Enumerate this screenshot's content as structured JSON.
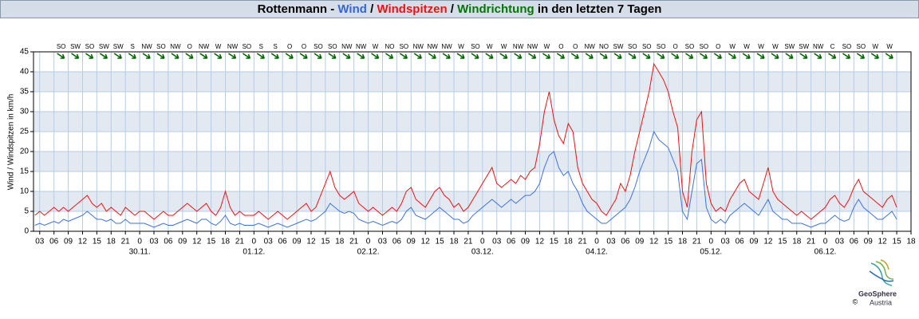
{
  "chart_data": {
    "type": "line",
    "title_parts": [
      {
        "text": "Rottenmann - ",
        "color": "#000000"
      },
      {
        "text": "Wind",
        "color": "#3366dd"
      },
      {
        "text": " / ",
        "color": "#000000"
      },
      {
        "text": "Windspitzen",
        "color": "#ee1111"
      },
      {
        "text": " / ",
        "color": "#000000"
      },
      {
        "text": "Windrichtung",
        "color": "#007700"
      },
      {
        "text": " in den letzten 7 Tagen",
        "color": "#000000"
      }
    ],
    "y_label": "Wind / Windspitzen in km/h",
    "ylim": [
      0,
      45
    ],
    "yticks": [
      0,
      5,
      10,
      15,
      20,
      25,
      30,
      35,
      40,
      45
    ],
    "xlim": [
      -22.3,
      162
    ],
    "xticks": [
      {
        "value": -21,
        "label": "03"
      },
      {
        "value": -18,
        "label": "06"
      },
      {
        "value": -15,
        "label": "09"
      },
      {
        "value": -12,
        "label": "12"
      },
      {
        "value": -9,
        "label": "15"
      },
      {
        "value": -6,
        "label": "18"
      },
      {
        "value": -3,
        "label": "21"
      },
      {
        "value": 0,
        "label": "0"
      },
      {
        "value": 3,
        "label": "03"
      },
      {
        "value": 6,
        "label": "06"
      },
      {
        "value": 9,
        "label": "09"
      },
      {
        "value": 12,
        "label": "12"
      },
      {
        "value": 15,
        "label": "15"
      },
      {
        "value": 18,
        "label": "18"
      },
      {
        "value": 21,
        "label": "21"
      },
      {
        "value": 24,
        "label": "0"
      },
      {
        "value": 27,
        "label": "03"
      },
      {
        "value": 30,
        "label": "06"
      },
      {
        "value": 33,
        "label": "09"
      },
      {
        "value": 36,
        "label": "12"
      },
      {
        "value": 39,
        "label": "15"
      },
      {
        "value": 42,
        "label": "18"
      },
      {
        "value": 45,
        "label": "21"
      },
      {
        "value": 48,
        "label": "0"
      },
      {
        "value": 51,
        "label": "03"
      },
      {
        "value": 54,
        "label": "06"
      },
      {
        "value": 57,
        "label": "09"
      },
      {
        "value": 60,
        "label": "12"
      },
      {
        "value": 63,
        "label": "15"
      },
      {
        "value": 66,
        "label": "18"
      },
      {
        "value": 69,
        "label": "21"
      },
      {
        "value": 72,
        "label": "0"
      },
      {
        "value": 75,
        "label": "03"
      },
      {
        "value": 78,
        "label": "06"
      },
      {
        "value": 81,
        "label": "09"
      },
      {
        "value": 84,
        "label": "12"
      },
      {
        "value": 87,
        "label": "15"
      },
      {
        "value": 90,
        "label": "18"
      },
      {
        "value": 93,
        "label": "21"
      },
      {
        "value": 96,
        "label": "0"
      },
      {
        "value": 99,
        "label": "03"
      },
      {
        "value": 102,
        "label": "06"
      },
      {
        "value": 105,
        "label": "09"
      },
      {
        "value": 108,
        "label": "12"
      },
      {
        "value": 111,
        "label": "15"
      },
      {
        "value": 114,
        "label": "18"
      },
      {
        "value": 117,
        "label": "21"
      },
      {
        "value": 120,
        "label": "0"
      },
      {
        "value": 123,
        "label": "03"
      },
      {
        "value": 126,
        "label": "06"
      },
      {
        "value": 129,
        "label": "09"
      },
      {
        "value": 132,
        "label": "12"
      },
      {
        "value": 135,
        "label": "15"
      },
      {
        "value": 138,
        "label": "18"
      },
      {
        "value": 141,
        "label": "21"
      },
      {
        "value": 144,
        "label": "0"
      },
      {
        "value": 147,
        "label": "03"
      },
      {
        "value": 150,
        "label": "06"
      },
      {
        "value": 153,
        "label": "09"
      },
      {
        "value": 156,
        "label": "12"
      },
      {
        "value": 159,
        "label": "15"
      },
      {
        "value": 162,
        "label": "18"
      }
    ],
    "date_labels": [
      {
        "value": 0,
        "label": "30.11."
      },
      {
        "value": 24,
        "label": "01.12."
      },
      {
        "value": 48,
        "label": "02.12."
      },
      {
        "value": 72,
        "label": "03.12."
      },
      {
        "value": 96,
        "label": "04.12."
      },
      {
        "value": 120,
        "label": "05.12."
      },
      {
        "value": 144,
        "label": "06.12."
      }
    ],
    "grid": true,
    "x": [
      -22,
      -21,
      -20,
      -19,
      -18,
      -17,
      -16,
      -15,
      -14,
      -13,
      -12,
      -11,
      -10,
      -9,
      -8,
      -7,
      -6,
      -5,
      -4,
      -3,
      -2,
      -1,
      0,
      1,
      2,
      3,
      4,
      5,
      6,
      7,
      8,
      9,
      10,
      11,
      12,
      13,
      14,
      15,
      16,
      17,
      18,
      19,
      20,
      21,
      22,
      23,
      24,
      25,
      26,
      27,
      28,
      29,
      30,
      31,
      32,
      33,
      34,
      35,
      36,
      37,
      38,
      39,
      40,
      41,
      42,
      43,
      44,
      45,
      46,
      47,
      48,
      49,
      50,
      51,
      52,
      53,
      54,
      55,
      56,
      57,
      58,
      59,
      60,
      61,
      62,
      63,
      64,
      65,
      66,
      67,
      68,
      69,
      70,
      71,
      72,
      73,
      74,
      75,
      76,
      77,
      78,
      79,
      80,
      81,
      82,
      83,
      84,
      85,
      86,
      87,
      88,
      89,
      90,
      91,
      92,
      93,
      94,
      95,
      96,
      97,
      98,
      99,
      100,
      101,
      102,
      103,
      104,
      105,
      106,
      107,
      108,
      109,
      110,
      111,
      112,
      113,
      114,
      115,
      116,
      117,
      118,
      119,
      120,
      121,
      122,
      123,
      124,
      125,
      126,
      127,
      128,
      129,
      130,
      131,
      132,
      133,
      134,
      135,
      136,
      137,
      138,
      139,
      140,
      141,
      142,
      143,
      144,
      145,
      146,
      147,
      148,
      149,
      150,
      151,
      152,
      153,
      154,
      155,
      156,
      157,
      158,
      159
    ],
    "series": [
      {
        "color": "#3f72dd",
        "values": [
          1.5,
          2,
          1.5,
          2,
          2.5,
          2,
          3,
          2.5,
          3,
          3.5,
          4,
          5,
          4,
          3,
          3,
          2.5,
          3,
          2,
          2,
          3,
          2,
          2,
          2,
          2,
          1.5,
          1,
          1.5,
          2,
          1.5,
          1.5,
          2,
          2.5,
          3,
          2.5,
          2,
          3,
          3,
          2,
          1.5,
          2.5,
          4,
          2,
          1.5,
          2,
          1.5,
          1.5,
          1.5,
          2,
          1.5,
          1,
          1.5,
          2,
          1.5,
          1,
          1.5,
          2,
          2.5,
          3,
          2.5,
          3,
          4,
          5,
          7,
          6,
          5,
          4.5,
          5,
          4.5,
          3,
          2.5,
          2,
          2.5,
          2,
          1.5,
          2,
          2.5,
          2,
          3,
          5,
          6,
          4,
          3.5,
          3,
          4,
          5,
          6,
          5,
          4,
          3,
          3,
          2,
          2.5,
          4,
          5,
          6,
          7,
          8,
          7,
          6,
          7,
          8,
          7,
          8,
          9,
          9,
          10,
          12,
          16,
          19,
          20,
          16,
          14,
          15,
          12,
          10,
          7,
          5,
          4,
          3,
          2,
          2,
          3,
          4,
          5,
          6,
          8,
          11,
          15,
          18,
          21,
          25,
          23,
          22,
          21,
          18,
          15,
          5,
          3,
          10,
          17,
          18,
          6,
          3,
          2,
          3,
          2,
          4,
          5,
          6,
          7,
          6,
          5,
          4,
          6,
          8,
          5,
          4,
          3,
          3,
          2,
          2,
          2,
          1.5,
          1,
          1.5,
          2,
          2,
          3,
          4,
          3,
          2.5,
          3,
          6,
          8,
          6,
          5,
          4,
          3,
          3,
          4,
          5,
          3
        ]
      },
      {
        "color": "#ee1111",
        "values": [
          4,
          5,
          4,
          5,
          6,
          5,
          6,
          5,
          6,
          7,
          8,
          9,
          7,
          6,
          7,
          5,
          6,
          5,
          4,
          6,
          5,
          4,
          5,
          5,
          4,
          3,
          4,
          5,
          4,
          4,
          5,
          6,
          7,
          6,
          5,
          6,
          7,
          5,
          4,
          6,
          10,
          6,
          4,
          5,
          4,
          4,
          4,
          5,
          4,
          3,
          4,
          5,
          4,
          3,
          4,
          5,
          6,
          7,
          5,
          6,
          9,
          12,
          15,
          11,
          9,
          8,
          9,
          10,
          7,
          6,
          5,
          6,
          5,
          4,
          5,
          6,
          5,
          7,
          10,
          11,
          8,
          7,
          6,
          8,
          10,
          11,
          9,
          8,
          6,
          7,
          5,
          6,
          8,
          10,
          12,
          14,
          16,
          12,
          11,
          12,
          13,
          12,
          14,
          13,
          15,
          16,
          22,
          30,
          35,
          28,
          24,
          22,
          27,
          25,
          16,
          12,
          10,
          8,
          7,
          5,
          4,
          6,
          8,
          12,
          10,
          14,
          20,
          25,
          30,
          35,
          42,
          40,
          38,
          35,
          30,
          26,
          10,
          6,
          20,
          28,
          30,
          12,
          7,
          5,
          6,
          5,
          8,
          10,
          12,
          13,
          10,
          9,
          8,
          12,
          16,
          10,
          8,
          7,
          6,
          5,
          4,
          5,
          4,
          3,
          4,
          5,
          6,
          8,
          9,
          7,
          6,
          8,
          11,
          13,
          10,
          9,
          8,
          7,
          6,
          8,
          9,
          6
        ]
      }
    ],
    "directions": {
      "color": "#006600",
      "x": [
        -16.5,
        -13.5,
        -10.5,
        -7.5,
        -4.5,
        -1.5,
        1.5,
        4.5,
        7.5,
        10.5,
        13.5,
        16.5,
        19.5,
        22.5,
        25.5,
        28.5,
        31.5,
        34.5,
        37.5,
        40.5,
        43.5,
        46.5,
        49.5,
        52.5,
        55.5,
        58.5,
        61.5,
        64.5,
        67.5,
        70.5,
        73.5,
        76.5,
        79.5,
        82.5,
        85.5,
        88.5,
        91.5,
        94.5,
        97.5,
        100.5,
        103.5,
        106.5,
        109.5,
        112.5,
        115.5,
        118.5,
        121.5,
        124.5,
        127.5,
        130.5,
        133.5,
        136.5,
        139.5,
        142.5,
        145.5,
        148.5,
        151.5,
        154.5,
        157.5
      ],
      "labels": [
        "SO",
        "SW",
        "SO",
        "SW",
        "SW",
        "S",
        "NW",
        "SO",
        "NW",
        "O",
        "NW",
        "W",
        "NW",
        "SO",
        "S",
        "S",
        "O",
        "O",
        "SO",
        "SO",
        "NW",
        "NW",
        "W",
        "NO",
        "SO",
        "NW",
        "NW",
        "NW",
        "W",
        "SO",
        "W",
        "W",
        "NW",
        "NW",
        "W",
        "O",
        "O",
        "NW",
        "NO",
        "SW",
        "SO",
        "SO",
        "SO",
        "O",
        "SO",
        "SO",
        "O",
        "W",
        "W",
        "W",
        "W",
        "SW",
        "SW",
        "NW",
        "C",
        "SO",
        "SO",
        "W",
        "W"
      ]
    },
    "logo": {
      "name": "GeoSphere",
      "sub": "Austria",
      "copyright": "©"
    }
  }
}
